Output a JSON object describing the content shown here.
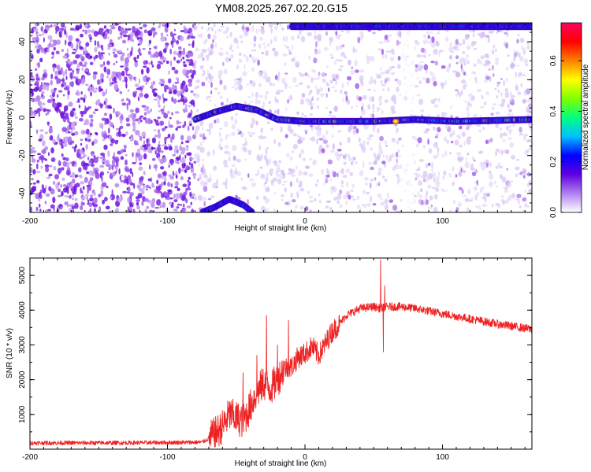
{
  "title": "YM08.2025.267.02.20.G15",
  "colors": {
    "snr_line": "#ee2222",
    "dots_light": "#ddc8f4",
    "dots_dark": "#7a20e0",
    "axis": "#000000"
  },
  "chart_data": [
    {
      "type": "heatmap",
      "name": "spectrogram",
      "xlabel": "Height of straight line (km)",
      "ylabel": "Frequency (Hz)",
      "xlim": [
        -200,
        165
      ],
      "ylim": [
        -50,
        50
      ],
      "xticks": [
        -200,
        -100,
        0,
        100
      ],
      "xtick_labels": [
        "-200",
        "-100",
        "0",
        "100"
      ],
      "yticks": [
        -40,
        -20,
        0,
        20,
        40
      ],
      "ytick_labels": [
        "-40",
        "-20",
        "0",
        "20",
        "40"
      ],
      "colorbar": {
        "label": "Normalized spectral amplitude",
        "range": [
          0.0,
          0.75
        ],
        "ticks": [
          0.0,
          0.2,
          0.4,
          0.6
        ],
        "tick_labels": [
          "0.0",
          "0.2",
          "0.4",
          "0.6"
        ],
        "stops": [
          "#ffffff",
          "#b080f0",
          "#6000e0",
          "#0000ff",
          "#00c0ff",
          "#00ff80",
          "#80ff00",
          "#ffff00",
          "#ff8000",
          "#ff0000",
          "#ff0060"
        ]
      },
      "features": [
        {
          "label": "carrier track",
          "x": [
            -80,
            -65,
            -50,
            -35,
            -20,
            0,
            50,
            80,
            110,
            165
          ],
          "y": [
            -1,
            3,
            6,
            4,
            -1,
            -2,
            -2,
            -1,
            -2,
            -1
          ]
        },
        {
          "label": "negative image track",
          "x": [
            -75,
            -65,
            -55,
            -45,
            -38
          ],
          "y": [
            -50,
            -47,
            -43,
            -46,
            -50
          ]
        },
        {
          "label": "upper edge band",
          "x": [
            -10,
            165
          ],
          "y": [
            48,
            48
          ]
        }
      ],
      "noise_regions": [
        {
          "label": "dense noise",
          "x_range": [
            -200,
            -80
          ],
          "density": "high"
        },
        {
          "label": "sparse noise",
          "x_range": [
            -80,
            165
          ],
          "density": "low"
        }
      ]
    },
    {
      "type": "line",
      "name": "snr",
      "xlabel": "Height of straight line (km)",
      "ylabel": "SNR (10 * v/v)",
      "xlim": [
        -200,
        165
      ],
      "ylim": [
        0,
        5500
      ],
      "xticks": [
        -200,
        -100,
        0,
        100
      ],
      "xtick_labels": [
        "-200",
        "-100",
        "0",
        "100"
      ],
      "yticks": [
        1000,
        2000,
        3000,
        4000,
        5000
      ],
      "ytick_labels": [
        "1000",
        "2000",
        "3000",
        "4000",
        "5000"
      ],
      "series": [
        {
          "name": "SNR",
          "x": [
            -200,
            -150,
            -100,
            -75,
            -70,
            -65,
            -60,
            -55,
            -50,
            -45,
            -40,
            -35,
            -30,
            -25,
            -20,
            -15,
            -10,
            -5,
            0,
            5,
            10,
            15,
            20,
            25,
            30,
            40,
            50,
            55,
            60,
            70,
            80,
            100,
            120,
            140,
            165
          ],
          "y": [
            180,
            180,
            190,
            200,
            300,
            450,
            650,
            1000,
            900,
            800,
            1200,
            1650,
            1900,
            1750,
            2000,
            2350,
            2350,
            2650,
            2750,
            2950,
            2700,
            3050,
            3400,
            3600,
            3850,
            4050,
            4100,
            4050,
            4100,
            4100,
            4050,
            3900,
            3750,
            3600,
            3450
          ]
        }
      ],
      "spikes": [
        {
          "x": -45,
          "y": 2200
        },
        {
          "x": -35,
          "y": 2700
        },
        {
          "x": -28,
          "y": 3850
        },
        {
          "x": -20,
          "y": 3000
        },
        {
          "x": -12,
          "y": 3700
        },
        {
          "x": 55,
          "y": 5450
        },
        {
          "x": 57,
          "y": 2800
        },
        {
          "x": 58,
          "y": 4700
        }
      ]
    }
  ]
}
